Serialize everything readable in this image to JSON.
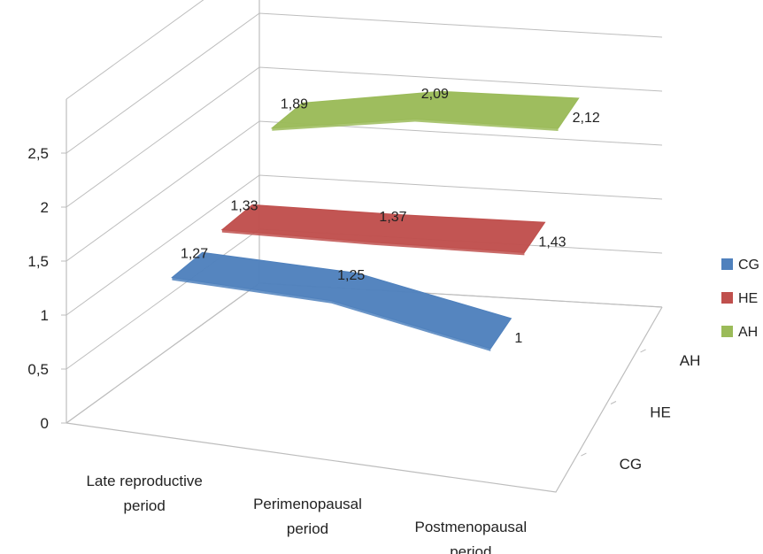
{
  "chart_data": {
    "type": "line",
    "subtype": "3d-ribbon",
    "categories": [
      "Late reproductive period",
      "Perimenopausal period",
      "Postmenopausal period"
    ],
    "category_lines": [
      [
        "Late reproductive",
        "period"
      ],
      [
        "Perimenopausal",
        "period"
      ],
      [
        "Postmenopausal",
        "period"
      ]
    ],
    "series": [
      {
        "name": "CG",
        "values": [
          1.27,
          1.25,
          1.0
        ],
        "labels": [
          "1,27",
          "1,25",
          "1"
        ],
        "color": "#4F81BD"
      },
      {
        "name": "HE",
        "values": [
          1.33,
          1.37,
          1.43
        ],
        "labels": [
          "1,33",
          "1,37",
          "1,43"
        ],
        "color": "#C0504D"
      },
      {
        "name": "AH",
        "values": [
          1.89,
          2.09,
          2.12
        ],
        "labels": [
          "1,89",
          "2,09",
          "2,12"
        ],
        "color": "#9BBB59"
      }
    ],
    "depth_labels": [
      "CG",
      "HE",
      "AH"
    ],
    "y_ticks": [
      "0",
      "0,5",
      "1",
      "1,5",
      "2",
      "2,5"
    ],
    "ylim": [
      0,
      2.5
    ],
    "legend": "right",
    "grid": true
  }
}
